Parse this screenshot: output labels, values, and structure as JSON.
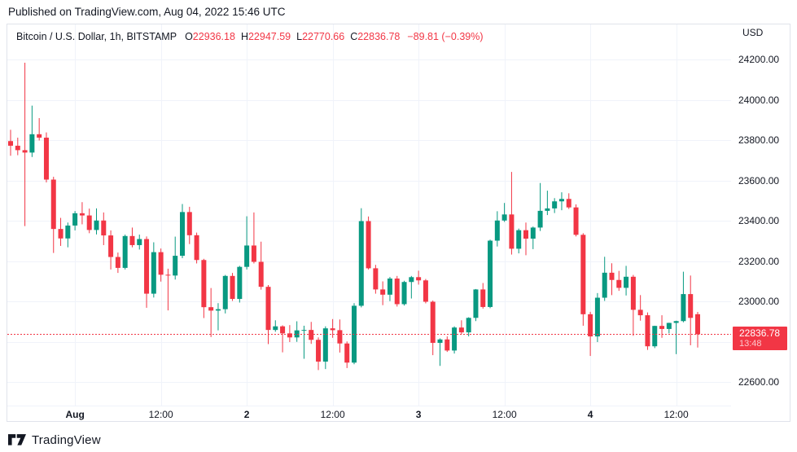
{
  "header": {
    "published": "Published on TradingView.com, Aug 04, 2022 15:46 UTC"
  },
  "legend": {
    "symbol": "Bitcoin / U.S. Dollar, 1h, BITSTAMP",
    "ohlc": [
      {
        "k": "O",
        "v": "22936.18"
      },
      {
        "k": "H",
        "v": "22947.59"
      },
      {
        "k": "L",
        "v": "22770.66"
      },
      {
        "k": "C",
        "v": "22836.78"
      }
    ],
    "change": "−89.81 (−0.39%)"
  },
  "price_scale": {
    "currency": "USD",
    "ticks": [
      {
        "label": "24200.00",
        "price": 24200
      },
      {
        "label": "24000.00",
        "price": 24000
      },
      {
        "label": "23800.00",
        "price": 23800
      },
      {
        "label": "23600.00",
        "price": 23600
      },
      {
        "label": "23400.00",
        "price": 23400
      },
      {
        "label": "23200.00",
        "price": 23200
      },
      {
        "label": "23000.00",
        "price": 23000
      },
      {
        "label": "22800.00",
        "price": 22800
      },
      {
        "label": "22600.00",
        "price": 22600
      }
    ]
  },
  "time_scale": {
    "ticks": [
      {
        "label": "Aug",
        "index": 9,
        "bold": true
      },
      {
        "label": "12:00",
        "index": 21,
        "bold": false
      },
      {
        "label": "2",
        "index": 33,
        "bold": true
      },
      {
        "label": "12:00",
        "index": 45,
        "bold": false
      },
      {
        "label": "3",
        "index": 57,
        "bold": true
      },
      {
        "label": "12:00",
        "index": 69,
        "bold": false
      },
      {
        "label": "4",
        "index": 81,
        "bold": true
      },
      {
        "label": "12:00",
        "index": 93,
        "bold": false
      }
    ]
  },
  "price_label": {
    "price": "22836.78",
    "countdown": "13:48"
  },
  "footer": {
    "brand": "TradingView"
  },
  "colors": {
    "up": "#089981",
    "down": "#f23645",
    "grid": "#f0f3fa",
    "border": "#e0e3eb",
    "text": "#131722",
    "accent": "#f23645",
    "badge_bg": "#f23645",
    "badge_text": "#ffffff"
  },
  "chart_data": {
    "type": "candlestick",
    "title": "Bitcoin / U.S. Dollar",
    "interval": "1h",
    "exchange": "BITSTAMP",
    "quote_currency": "USD",
    "last_candle": {
      "open": 22936.18,
      "high": 22947.59,
      "low": 22770.66,
      "close": 22836.78,
      "change": -89.81,
      "change_pct": -0.39
    },
    "last_countdown": "13:48",
    "y_axis": {
      "min": 22450,
      "max": 24375,
      "tick_step": 200,
      "grid": true
    },
    "x_axis": {
      "tick_labels": [
        "Aug",
        "12:00",
        "2",
        "12:00",
        "3",
        "12:00",
        "4",
        "12:00"
      ],
      "grid": true
    },
    "candles_are": "arrays of [open, high, low, close], hourly, ending Aug 04 2022 15:00 UTC",
    "candles": [
      [
        23795,
        23851,
        23722,
        23772
      ],
      [
        23772,
        23812,
        23725,
        23750
      ],
      [
        23750,
        24184,
        23373,
        23738
      ],
      [
        23738,
        23971,
        23716,
        23829
      ],
      [
        23829,
        23909,
        23798,
        23812
      ],
      [
        23812,
        23838,
        23590,
        23604
      ],
      [
        23604,
        23618,
        23240,
        23359
      ],
      [
        23359,
        23414,
        23275,
        23312
      ],
      [
        23312,
        23391,
        23268,
        23376
      ],
      [
        23376,
        23448,
        23352,
        23437
      ],
      [
        23437,
        23492,
        23382,
        23426
      ],
      [
        23426,
        23460,
        23338,
        23354
      ],
      [
        23354,
        23461,
        23332,
        23401
      ],
      [
        23401,
        23441,
        23279,
        23327
      ],
      [
        23327,
        23352,
        23158,
        23220
      ],
      [
        23220,
        23242,
        23141,
        23166
      ],
      [
        23166,
        23331,
        23158,
        23324
      ],
      [
        23324,
        23366,
        23268,
        23279
      ],
      [
        23279,
        23331,
        23257,
        23309
      ],
      [
        23309,
        23322,
        22968,
        23038
      ],
      [
        23038,
        23293,
        23019,
        23244
      ],
      [
        23244,
        23262,
        23098,
        23132
      ],
      [
        23132,
        23162,
        22955,
        23128
      ],
      [
        23128,
        23321,
        23108,
        23226
      ],
      [
        23226,
        23483,
        23214,
        23443
      ],
      [
        23443,
        23469,
        23284,
        23328
      ],
      [
        23328,
        23341,
        23188,
        23205
      ],
      [
        23205,
        23211,
        22917,
        22971
      ],
      [
        22971,
        23066,
        22823,
        22954
      ],
      [
        22954,
        22991,
        22856,
        22961
      ],
      [
        22961,
        23131,
        22940,
        23126
      ],
      [
        23126,
        23141,
        23002,
        23012
      ],
      [
        23012,
        23176,
        22994,
        23171
      ],
      [
        23171,
        23422,
        23158,
        23277
      ],
      [
        23277,
        23441,
        23188,
        23196
      ],
      [
        23196,
        23296,
        23058,
        23072
      ],
      [
        23072,
        23081,
        22788,
        22858
      ],
      [
        22858,
        22906,
        22849,
        22876
      ],
      [
        22876,
        22881,
        22747,
        22841
      ],
      [
        22841,
        22882,
        22798,
        22821
      ],
      [
        22821,
        22901,
        22799,
        22856
      ],
      [
        22856,
        22879,
        22715,
        22858
      ],
      [
        22858,
        22898,
        22789,
        22809
      ],
      [
        22809,
        22821,
        22659,
        22701
      ],
      [
        22701,
        22876,
        22664,
        22866
      ],
      [
        22866,
        22912,
        22819,
        22857
      ],
      [
        22857,
        22910,
        22746,
        22791
      ],
      [
        22791,
        22801,
        22669,
        22696
      ],
      [
        22696,
        22991,
        22688,
        22978
      ],
      [
        22978,
        23462,
        22970,
        23398
      ],
      [
        23398,
        23421,
        23158,
        23164
      ],
      [
        23164,
        23181,
        23038,
        23059
      ],
      [
        23059,
        23099,
        22981,
        23033
      ],
      [
        23033,
        23121,
        23001,
        23113
      ],
      [
        23113,
        23126,
        22974,
        22986
      ],
      [
        22986,
        23102,
        22979,
        23096
      ],
      [
        23096,
        23126,
        23014,
        23120
      ],
      [
        23120,
        23152,
        23083,
        23104
      ],
      [
        23104,
        23111,
        22990,
        22998
      ],
      [
        22998,
        23004,
        22733,
        22794
      ],
      [
        22794,
        22816,
        22680,
        22811
      ],
      [
        22811,
        22826,
        22749,
        22756
      ],
      [
        22756,
        22876,
        22741,
        22870
      ],
      [
        22870,
        22906,
        22836,
        22846
      ],
      [
        22846,
        22921,
        22826,
        22918
      ],
      [
        22918,
        23061,
        22902,
        23059
      ],
      [
        23059,
        23091,
        22964,
        22972
      ],
      [
        22972,
        23306,
        22966,
        23301
      ],
      [
        23301,
        23447,
        23272,
        23401
      ],
      [
        23401,
        23488,
        23394,
        23431
      ],
      [
        23431,
        23642,
        23232,
        23261
      ],
      [
        23261,
        23361,
        23238,
        23353
      ],
      [
        23353,
        23391,
        23229,
        23311
      ],
      [
        23311,
        23371,
        23259,
        23366
      ],
      [
        23366,
        23587,
        23349,
        23449
      ],
      [
        23449,
        23549,
        23428,
        23461
      ],
      [
        23461,
        23512,
        23438,
        23496
      ],
      [
        23496,
        23541,
        23452,
        23508
      ],
      [
        23508,
        23536,
        23458,
        23466
      ],
      [
        23466,
        23481,
        23322,
        23330
      ],
      [
        23330,
        23338,
        22879,
        22936
      ],
      [
        22936,
        22948,
        22729,
        22826
      ],
      [
        22826,
        23041,
        22798,
        23018
      ],
      [
        23018,
        23221,
        23002,
        23142
      ],
      [
        23142,
        23189,
        23031,
        23106
      ],
      [
        23106,
        23151,
        23052,
        23067
      ],
      [
        23067,
        23176,
        23029,
        23122
      ],
      [
        23122,
        23131,
        22829,
        22958
      ],
      [
        22958,
        23031,
        22904,
        22931
      ],
      [
        22931,
        22945,
        22759,
        22777
      ],
      [
        22777,
        22879,
        22768,
        22878
      ],
      [
        22878,
        22931,
        22819,
        22863
      ],
      [
        22863,
        22894,
        22841,
        22893
      ],
      [
        22893,
        22904,
        22738,
        22902
      ],
      [
        22902,
        23147,
        22896,
        23036
      ],
      [
        23036,
        23128,
        22782,
        22918
      ],
      [
        22936.18,
        22947.59,
        22770.66,
        22836.78
      ]
    ]
  }
}
